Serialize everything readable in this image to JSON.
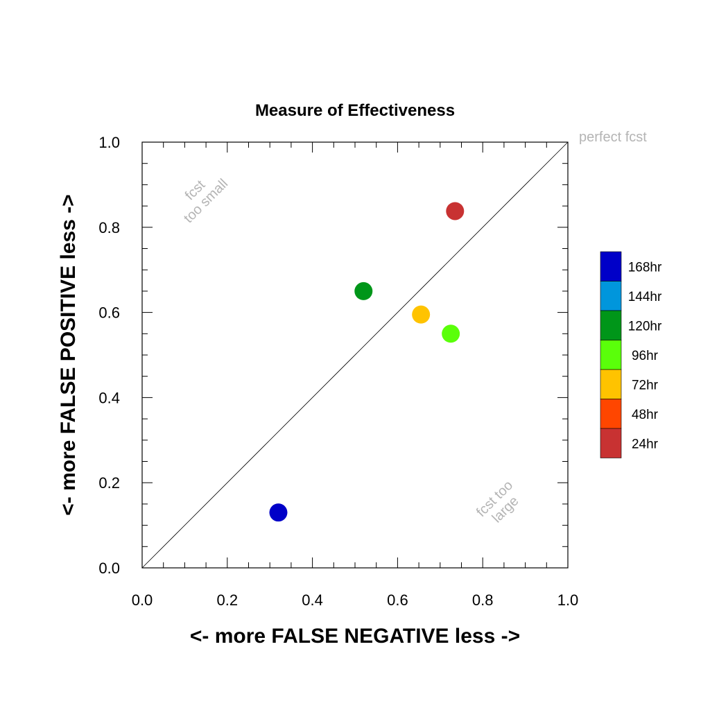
{
  "chart_data": {
    "type": "scatter",
    "title": "Measure of Effectiveness",
    "xlabel": "<- more   FALSE NEGATIVE   less ->",
    "ylabel": "<- more   FALSE POSITIVE   less ->",
    "xlim": [
      0,
      1
    ],
    "ylim": [
      0,
      1
    ],
    "xticks": [
      "0.0",
      "0.2",
      "0.4",
      "0.6",
      "0.8",
      "1.0"
    ],
    "yticks": [
      "0.0",
      "0.2",
      "0.4",
      "0.6",
      "0.8",
      "1.0"
    ],
    "grid": false,
    "diagonal_line": true,
    "annotations": {
      "perfect": "perfect fcst",
      "too_small_1": "fcst",
      "too_small_2": "too small",
      "too_large_1": "fcst too",
      "too_large_2": "large"
    },
    "legend_position": "right",
    "legend": [
      {
        "label": "168hr",
        "color": "#0000c8"
      },
      {
        "label": "144hr",
        "color": "#0096dc"
      },
      {
        "label": "120hr",
        "color": "#009619"
      },
      {
        "label": "96hr",
        "color": "#5aff0a"
      },
      {
        "label": "72hr",
        "color": "#ffc300"
      },
      {
        "label": "48hr",
        "color": "#ff4600"
      },
      {
        "label": "24hr",
        "color": "#c83232"
      }
    ],
    "points": [
      {
        "label": "168hr",
        "x": 0.32,
        "y": 0.13,
        "color": "#0000c8"
      },
      {
        "label": "120hr",
        "x": 0.52,
        "y": 0.65,
        "color": "#009619"
      },
      {
        "label": "96hr",
        "x": 0.725,
        "y": 0.55,
        "color": "#5aff0a"
      },
      {
        "label": "72hr",
        "x": 0.655,
        "y": 0.595,
        "color": "#ffc300"
      },
      {
        "label": "24hr",
        "x": 0.735,
        "y": 0.838,
        "color": "#c83232"
      }
    ]
  }
}
